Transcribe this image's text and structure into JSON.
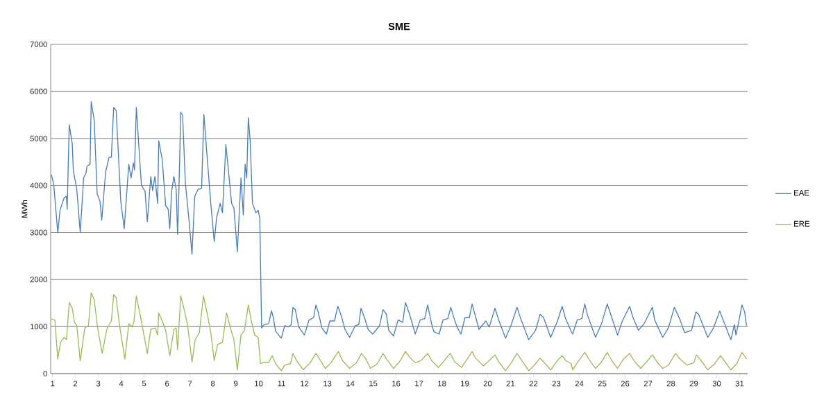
{
  "chart_data": {
    "type": "line",
    "title": "SME",
    "ylabel": "MWh",
    "xlim": [
      0.92,
      31.35
    ],
    "ylim": [
      0,
      7000
    ],
    "xticks": [
      1,
      2,
      3,
      4,
      5,
      6,
      7,
      8,
      9,
      10,
      11,
      12,
      13,
      14,
      15,
      16,
      17,
      18,
      19,
      20,
      21,
      22,
      23,
      24,
      25,
      26,
      27,
      28,
      29,
      30,
      31
    ],
    "yticks": [
      0,
      1000,
      2000,
      3000,
      4000,
      5000,
      6000,
      7000
    ],
    "grid": "y",
    "legend": "right",
    "marker": "none",
    "line_style": "solid",
    "series": [
      {
        "name": "EAE",
        "color": "#4a7ebb",
        "x": [
          0.95,
          1.05,
          1.23,
          1.33,
          1.51,
          1.61,
          1.64,
          1.73,
          1.86,
          1.91,
          2.06,
          2.21,
          2.36,
          2.46,
          2.51,
          2.64,
          2.69,
          2.82,
          2.95,
          3.07,
          3.15,
          3.32,
          3.47,
          3.57,
          3.67,
          3.78,
          3.98,
          4.13,
          4.33,
          4.43,
          4.53,
          4.58,
          4.66,
          4.88,
          5.04,
          5.14,
          5.29,
          5.37,
          5.47,
          5.59,
          5.64,
          5.79,
          5.94,
          6.05,
          6.12,
          6.2,
          6.3,
          6.4,
          6.46,
          6.52,
          6.6,
          6.68,
          6.8,
          6.96,
          7.09,
          7.21,
          7.36,
          7.51,
          7.61,
          7.76,
          7.91,
          8.06,
          8.17,
          8.32,
          8.42,
          8.57,
          8.82,
          8.92,
          9.07,
          9.23,
          9.33,
          9.41,
          9.48,
          9.55,
          9.63,
          9.73,
          9.88,
          9.98,
          10.05,
          10.13,
          10.23,
          10.44,
          10.56,
          10.64,
          10.74,
          10.99,
          11.14,
          11.29,
          11.42,
          11.5,
          11.6,
          11.75,
          12.0,
          12.2,
          12.4,
          12.5,
          12.6,
          12.76,
          12.96,
          13.11,
          13.31,
          13.46,
          13.62,
          13.77,
          13.97,
          14.22,
          14.37,
          14.47,
          14.62,
          14.78,
          14.98,
          15.28,
          15.43,
          15.58,
          15.68,
          15.89,
          16.09,
          16.29,
          16.41,
          16.59,
          16.84,
          17.05,
          17.25,
          17.38,
          17.55,
          17.65,
          17.88,
          18.05,
          18.26,
          18.39,
          18.51,
          18.66,
          18.83,
          19.01,
          19.2,
          19.32,
          19.47,
          19.62,
          19.92,
          20.07,
          20.32,
          20.48,
          20.78,
          21.03,
          21.28,
          21.44,
          21.79,
          22.09,
          22.29,
          22.44,
          22.75,
          23.05,
          23.25,
          23.4,
          23.65,
          23.71,
          23.91,
          24.11,
          24.24,
          24.36,
          24.71,
          24.97,
          25.22,
          25.37,
          25.67,
          25.88,
          26.2,
          26.33,
          26.58,
          26.83,
          27.19,
          27.29,
          27.64,
          27.89,
          28.15,
          28.4,
          28.6,
          28.9,
          29.09,
          29.21,
          29.61,
          29.86,
          30.13,
          30.52,
          30.62,
          30.77,
          30.84,
          30.97,
          31.1,
          31.22,
          31.3
        ],
        "values": [
          4230,
          4040,
          3000,
          3480,
          3740,
          3770,
          3490,
          5290,
          4900,
          4310,
          3920,
          3000,
          4160,
          4260,
          4410,
          4450,
          5780,
          5390,
          3820,
          3670,
          3260,
          4290,
          4600,
          4600,
          5660,
          5590,
          3670,
          3080,
          4450,
          4160,
          4480,
          4330,
          5660,
          4010,
          3870,
          3230,
          4190,
          3890,
          4190,
          3620,
          4950,
          4550,
          3570,
          3500,
          3080,
          3870,
          4190,
          3920,
          2960,
          3920,
          5560,
          5490,
          4060,
          3260,
          2540,
          3770,
          3920,
          3940,
          5510,
          4550,
          3620,
          2810,
          3330,
          3620,
          3420,
          4870,
          3620,
          3520,
          2590,
          4160,
          3370,
          4450,
          4160,
          5440,
          4950,
          3620,
          3420,
          3470,
          3300,
          970,
          1040,
          1060,
          1340,
          1190,
          900,
          750,
          1020,
          990,
          1040,
          1410,
          1360,
          990,
          820,
          1140,
          1190,
          1460,
          1310,
          970,
          840,
          1120,
          1120,
          1430,
          1210,
          940,
          770,
          1020,
          1040,
          1390,
          1190,
          940,
          840,
          1020,
          1360,
          1260,
          920,
          800,
          1140,
          1090,
          1510,
          1260,
          840,
          1140,
          1170,
          1460,
          1060,
          890,
          840,
          1140,
          1170,
          1410,
          1210,
          990,
          840,
          1190,
          1190,
          1480,
          1210,
          940,
          1120,
          990,
          1390,
          1140,
          750,
          1040,
          1410,
          1170,
          720,
          920,
          1260,
          1190,
          770,
          1120,
          1430,
          1170,
          890,
          840,
          1140,
          1170,
          1480,
          1240,
          770,
          1060,
          1480,
          1260,
          820,
          1120,
          1430,
          1210,
          920,
          1060,
          1410,
          1140,
          770,
          970,
          1410,
          1140,
          870,
          920,
          1310,
          1260,
          770,
          970,
          1330,
          840,
          720,
          1040,
          820,
          1120,
          1460,
          1310,
          1020
        ]
      },
      {
        "name": "ERE",
        "color": "#9bbb59",
        "x": [
          0.95,
          1.1,
          1.23,
          1.35,
          1.51,
          1.61,
          1.73,
          1.86,
          1.96,
          2.06,
          2.21,
          2.41,
          2.57,
          2.69,
          2.82,
          2.97,
          3.17,
          3.37,
          3.57,
          3.67,
          3.78,
          3.93,
          4.16,
          4.33,
          4.48,
          4.56,
          4.66,
          4.88,
          5.14,
          5.29,
          5.49,
          5.59,
          5.64,
          5.79,
          5.94,
          6.12,
          6.3,
          6.4,
          6.46,
          6.6,
          6.75,
          6.9,
          7.09,
          7.23,
          7.41,
          7.59,
          7.76,
          7.91,
          8.06,
          8.21,
          8.42,
          8.6,
          8.77,
          8.92,
          9.07,
          9.23,
          9.38,
          9.55,
          9.68,
          9.83,
          9.98,
          10.08,
          10.23,
          10.44,
          10.59,
          10.74,
          10.99,
          11.14,
          11.39,
          11.5,
          11.65,
          11.95,
          12.25,
          12.5,
          12.66,
          12.91,
          13.16,
          13.48,
          13.66,
          13.97,
          14.27,
          14.49,
          14.68,
          14.88,
          15.18,
          15.43,
          15.58,
          15.89,
          16.19,
          16.41,
          16.59,
          16.84,
          17.1,
          17.38,
          17.55,
          17.85,
          18.11,
          18.36,
          18.56,
          18.86,
          19.11,
          19.32,
          19.47,
          19.82,
          20.07,
          20.32,
          20.48,
          20.78,
          21.03,
          21.28,
          21.49,
          21.79,
          22.04,
          22.29,
          22.44,
          22.75,
          23.05,
          23.25,
          23.4,
          23.65,
          23.71,
          23.91,
          24.24,
          24.41,
          24.71,
          24.97,
          25.22,
          25.42,
          25.67,
          25.93,
          26.2,
          26.38,
          26.68,
          26.94,
          27.19,
          27.39,
          27.64,
          27.89,
          28.2,
          28.4,
          28.7,
          29.0,
          29.11,
          29.31,
          29.61,
          29.91,
          30.16,
          30.32,
          30.62,
          30.87,
          31.1,
          31.31
        ],
        "values": [
          1160,
          1140,
          310,
          670,
          770,
          720,
          1510,
          1390,
          1090,
          1020,
          270,
          970,
          1020,
          1720,
          1570,
          970,
          430,
          940,
          1120,
          1680,
          1610,
          1020,
          310,
          1060,
          990,
          1120,
          1650,
          1120,
          430,
          940,
          970,
          820,
          1290,
          1120,
          920,
          380,
          940,
          970,
          510,
          1650,
          1360,
          1020,
          250,
          720,
          870,
          1650,
          1260,
          870,
          280,
          620,
          670,
          1290,
          970,
          720,
          80,
          820,
          920,
          1460,
          1120,
          820,
          770,
          210,
          240,
          240,
          380,
          210,
          60,
          180,
          210,
          430,
          280,
          80,
          230,
          430,
          310,
          110,
          230,
          470,
          280,
          110,
          230,
          430,
          310,
          110,
          210,
          430,
          310,
          110,
          280,
          470,
          350,
          230,
          280,
          430,
          280,
          130,
          280,
          430,
          250,
          130,
          310,
          470,
          330,
          160,
          280,
          400,
          250,
          60,
          230,
          430,
          280,
          60,
          180,
          330,
          250,
          80,
          280,
          380,
          280,
          210,
          80,
          230,
          450,
          310,
          110,
          250,
          450,
          280,
          110,
          310,
          430,
          280,
          110,
          250,
          400,
          250,
          110,
          180,
          430,
          310,
          180,
          230,
          400,
          280,
          80,
          210,
          380,
          280,
          80,
          210,
          450,
          310
        ]
      }
    ]
  }
}
